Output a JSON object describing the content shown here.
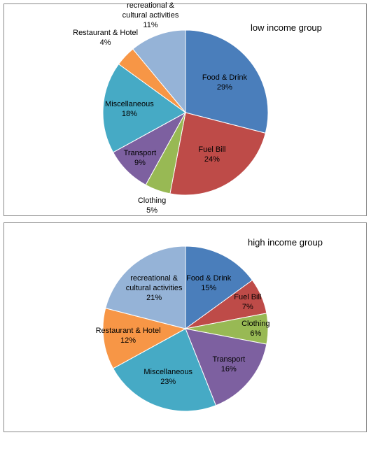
{
  "chart_data": [
    {
      "type": "pie",
      "title": "low income group",
      "categories": [
        "Food & Drink",
        "Fuel Bill",
        "Clothing",
        "Transport",
        "Miscellaneous",
        "Restaurant & Hotel",
        "recreational & cultural activities"
      ],
      "values": [
        29,
        24,
        5,
        9,
        18,
        4,
        11
      ],
      "value_labels": [
        "29%",
        "24%",
        "5%",
        "9%",
        "18%",
        "4%",
        "11%"
      ],
      "colors": [
        "#4a7ebb",
        "#be4b48",
        "#98b954",
        "#7d60a0",
        "#46aac5",
        "#f79646",
        "#95b3d7"
      ]
    },
    {
      "type": "pie",
      "title": "high income group",
      "categories": [
        "Food & Drink",
        "Fuel Bill",
        "Clothing",
        "Transport",
        "Miscellaneous",
        "Restaurant & Hotel",
        "recreational & cultural activities"
      ],
      "values": [
        15,
        7,
        6,
        16,
        23,
        12,
        21
      ],
      "value_labels": [
        "15%",
        "7%",
        "6%",
        "16%",
        "23%",
        "12%",
        "21%"
      ],
      "colors": [
        "#4a7ebb",
        "#be4b48",
        "#98b954",
        "#7d60a0",
        "#46aac5",
        "#f79646",
        "#95b3d7"
      ]
    }
  ]
}
